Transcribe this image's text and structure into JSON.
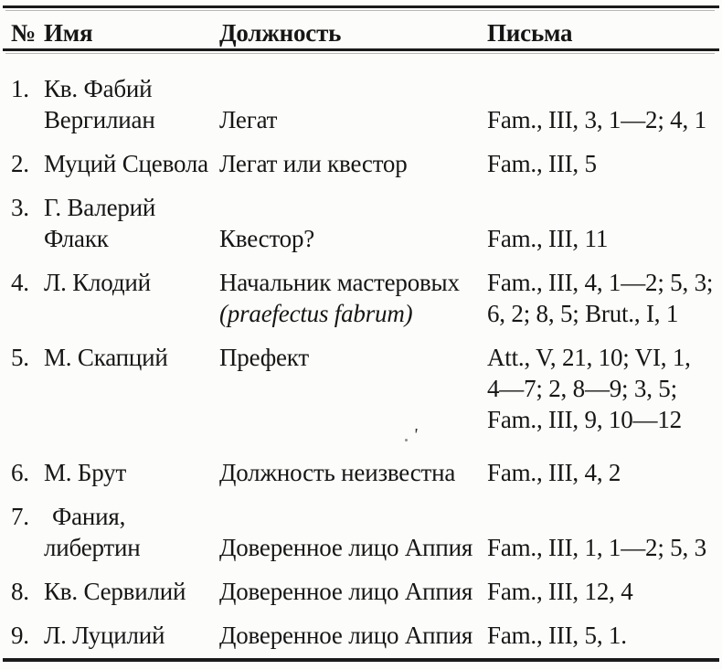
{
  "header": {
    "num": "№",
    "name": "Имя",
    "position": "Должность",
    "letters": "Письма"
  },
  "rows": [
    {
      "num": "1.",
      "name_lines": [
        "Кв. Фабий",
        "Вергилиан"
      ],
      "position_lines": [
        "Легат"
      ],
      "letters_lines": [
        "Fam., III, 3, 1—2; 4, 1"
      ]
    },
    {
      "num": "2.",
      "name_lines": [
        "Муций Сцевола"
      ],
      "position_lines": [
        "Легат или квестор"
      ],
      "letters_lines": [
        "Fam., III, 5"
      ]
    },
    {
      "num": "3.",
      "name_lines": [
        "Г. Валерий",
        "Флакк"
      ],
      "position_lines": [
        "Квестор?"
      ],
      "letters_lines": [
        "Fam., III, 11"
      ]
    },
    {
      "num": "4.",
      "name_lines": [
        "Л. Клодий"
      ],
      "position_lines": [
        "Начальник мастеровых",
        "(praefectus fabrum)"
      ],
      "letters_lines": [
        "Fam., III, 4, 1—2; 5, 3;",
        "6, 2; 8, 5; Brut., I, 1"
      ]
    },
    {
      "num": "5.",
      "name_lines": [
        "М. Скапций"
      ],
      "position_lines": [
        "Префект"
      ],
      "letters_lines": [
        "Att., V, 21, 10; VI, 1,",
        "4—7; 2, 8—9; 3, 5;",
        "Fam., III, 9, 10—12"
      ]
    },
    {
      "num": "6.",
      "name_lines": [
        "М. Брут"
      ],
      "position_lines": [
        "Должность неизвестна"
      ],
      "letters_lines": [
        "Fam., III, 4, 2"
      ]
    },
    {
      "num": "7.",
      "name_lines": [
        "Фания,",
        "либертин"
      ],
      "position_lines": [
        "Доверенное лицо Аппия"
      ],
      "letters_lines": [
        "Fam., III, 1, 1—2; 5, 3"
      ]
    },
    {
      "num": "8.",
      "name_lines": [
        "Кв. Сервилий"
      ],
      "position_lines": [
        "Доверенное лицо Аппия"
      ],
      "letters_lines": [
        "Fam., III, 12, 4"
      ]
    },
    {
      "num": "9.",
      "name_lines": [
        "Л. Луцилий"
      ],
      "position_lines": [
        "Доверенное лицо Аппия"
      ],
      "letters_lines": [
        "Fam., III, 5, 1."
      ]
    }
  ],
  "artifacts": {
    "tick": "'"
  },
  "colors": {
    "ink": "#161616",
    "paper": "#fcfcfa"
  }
}
